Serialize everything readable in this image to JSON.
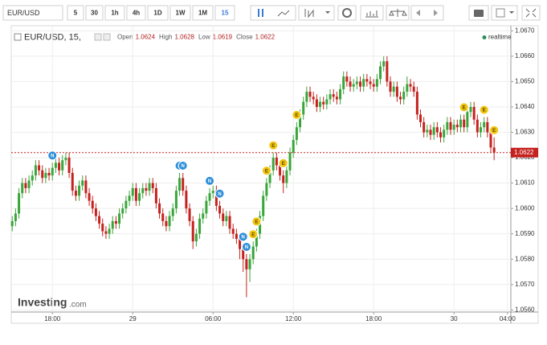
{
  "toolbar": {
    "symbol": "EUR/USD",
    "intervals": [
      "5",
      "30",
      "1h",
      "4h",
      "1D",
      "1W",
      "1M"
    ],
    "selected": "15"
  },
  "chart_data": {
    "type": "candlestick",
    "legend": {
      "title": "EUR/USD, 15,",
      "open_label": "Open",
      "open": 1.0624,
      "high_label": "High",
      "high": 1.0628,
      "low_label": "Low",
      "low": 1.0619,
      "close_label": "Close",
      "close": 1.0622,
      "status": "realtime"
    },
    "watermark": {
      "brand": "Investing",
      "suffix": ".com"
    },
    "current_price": 1.0622,
    "up_color": "#3aa53a",
    "down_color": "#c4221f",
    "grid": true,
    "ylim": [
      1.0556,
      1.0672
    ],
    "yticks": [
      {
        "value": 1.056,
        "label": "1.0560"
      },
      {
        "value": 1.057,
        "label": "1.0570"
      },
      {
        "value": 1.058,
        "label": "1.0580"
      },
      {
        "value": 1.059,
        "label": "1.0590"
      },
      {
        "value": 1.06,
        "label": "1.0600"
      },
      {
        "value": 1.061,
        "label": "1.0610"
      },
      {
        "value": 1.062,
        "label": "1.0620"
      },
      {
        "value": 1.063,
        "label": "1.0630"
      },
      {
        "value": 1.064,
        "label": "1.0640"
      },
      {
        "value": 1.065,
        "label": "1.0650"
      },
      {
        "value": 1.066,
        "label": "1.0660"
      },
      {
        "value": 1.067,
        "label": "1.0670"
      }
    ],
    "xlim": [
      -0.3,
      149
    ],
    "xticks": [
      {
        "value": 12,
        "label": "18:00"
      },
      {
        "value": 36,
        "label": "29"
      },
      {
        "value": 60,
        "label": "06:00"
      },
      {
        "value": 84,
        "label": "12:00"
      },
      {
        "value": 108,
        "label": "18:00"
      },
      {
        "value": 132,
        "label": "30"
      },
      {
        "value": 148,
        "label": "04:00"
      }
    ],
    "open": [
      1.0593,
      1.0595,
      1.0598,
      1.0606,
      1.061,
      1.0608,
      1.0611,
      1.0613,
      1.0617,
      1.0615,
      1.0612,
      1.0614,
      1.0613,
      1.0616,
      1.0618,
      1.0615,
      1.0619,
      1.062,
      1.0614,
      1.0607,
      1.0605,
      1.0609,
      1.0611,
      1.0606,
      1.0603,
      1.06,
      1.0597,
      1.0594,
      1.0591,
      1.059,
      1.0592,
      1.0595,
      1.0594,
      1.0598,
      1.06,
      1.0603,
      1.0605,
      1.0608,
      1.0603,
      1.0606,
      1.0608,
      1.0607,
      1.061,
      1.0608,
      1.0602,
      1.0598,
      1.0595,
      1.0593,
      1.0597,
      1.06,
      1.0607,
      1.0612,
      1.0607,
      1.06,
      1.0595,
      1.0587,
      1.059,
      1.0596,
      1.0598,
      1.0603,
      1.0606,
      1.0607,
      1.0601,
      1.0598,
      1.0595,
      1.0597,
      1.0592,
      1.059,
      1.0588,
      1.0584,
      1.058,
      1.0576,
      1.058,
      1.0585,
      1.059,
      1.0597,
      1.0605,
      1.061,
      1.0615,
      1.062,
      1.0617,
      1.0613,
      1.061,
      1.0615,
      1.0622,
      1.0627,
      1.0632,
      1.0637,
      1.0642,
      1.0646,
      1.0644,
      1.0643,
      1.064,
      1.0642,
      1.0641,
      1.0643,
      1.0645,
      1.0644,
      1.0643,
      1.0647,
      1.0652,
      1.065,
      1.0648,
      1.0649,
      1.065,
      1.0648,
      1.0651,
      1.065,
      1.0649,
      1.0648,
      1.0651,
      1.0656,
      1.0658,
      1.065,
      1.0646,
      1.0648,
      1.0644,
      1.0643,
      1.0646,
      1.0649,
      1.0648,
      1.0646,
      1.0637,
      1.0634,
      1.063,
      1.0631,
      1.0629,
      1.0632,
      1.063,
      1.0628,
      1.0631,
      1.0634,
      1.0631,
      1.0633,
      1.0632,
      1.0635,
      1.0632,
      1.0638,
      1.064,
      1.0635,
      1.063,
      1.0632,
      1.0634,
      1.063,
      1.0624
    ],
    "high": [
      1.0597,
      1.06,
      1.0608,
      1.0612,
      1.0612,
      1.0613,
      1.0615,
      1.0619,
      1.0619,
      1.0617,
      1.0616,
      1.0616,
      1.0618,
      1.0621,
      1.062,
      1.0621,
      1.0622,
      1.0622,
      1.0616,
      1.0609,
      1.0611,
      1.0613,
      1.0613,
      1.0608,
      1.0605,
      1.0602,
      1.0599,
      1.0596,
      1.0593,
      1.0594,
      1.0597,
      1.0597,
      1.06,
      1.0602,
      1.0605,
      1.0607,
      1.061,
      1.061,
      1.0608,
      1.061,
      1.061,
      1.0612,
      1.0612,
      1.061,
      1.0604,
      1.06,
      1.0597,
      1.0599,
      1.0602,
      1.0609,
      1.0614,
      1.0614,
      1.0609,
      1.0602,
      1.0597,
      1.0592,
      1.0598,
      1.06,
      1.0605,
      1.0608,
      1.0609,
      1.0609,
      1.0603,
      1.06,
      1.0599,
      1.0599,
      1.0594,
      1.0592,
      1.059,
      1.0586,
      1.0582,
      1.0582,
      1.0587,
      1.0592,
      1.0599,
      1.0607,
      1.0612,
      1.0617,
      1.0622,
      1.0622,
      1.0619,
      1.0615,
      1.0617,
      1.0624,
      1.0629,
      1.0634,
      1.0639,
      1.0644,
      1.0648,
      1.0648,
      1.0646,
      1.0645,
      1.0644,
      1.0644,
      1.0645,
      1.0647,
      1.0647,
      1.0646,
      1.0649,
      1.0654,
      1.0654,
      1.0652,
      1.0651,
      1.0652,
      1.0652,
      1.0653,
      1.0653,
      1.0652,
      1.0651,
      1.0653,
      1.0658,
      1.066,
      1.066,
      1.0652,
      1.065,
      1.065,
      1.0646,
      1.0648,
      1.0652,
      1.0651,
      1.065,
      1.0648,
      1.0639,
      1.0636,
      1.0633,
      1.0633,
      1.0634,
      1.0634,
      1.0632,
      1.0633,
      1.0636,
      1.0636,
      1.0635,
      1.0635,
      1.0637,
      1.0637,
      1.064,
      1.0642,
      1.0642,
      1.0637,
      1.0634,
      1.0636,
      1.0636,
      1.0632,
      1.0628
    ],
    "low": [
      1.0591,
      1.0593,
      1.0596,
      1.0604,
      1.0606,
      1.0606,
      1.0609,
      1.0611,
      1.0613,
      1.061,
      1.061,
      1.0611,
      1.0611,
      1.0614,
      1.0613,
      1.0613,
      1.0617,
      1.0612,
      1.0605,
      1.0603,
      1.0603,
      1.0607,
      1.0604,
      1.0601,
      1.0598,
      1.0595,
      1.0592,
      1.0589,
      1.0588,
      1.0588,
      1.059,
      1.0592,
      1.0592,
      1.0596,
      1.0598,
      1.0601,
      1.0603,
      1.0601,
      1.0601,
      1.0604,
      1.0605,
      1.0605,
      1.0606,
      1.06,
      1.0596,
      1.0593,
      1.0591,
      1.0591,
      1.0595,
      1.0598,
      1.0605,
      1.0605,
      1.0598,
      1.0593,
      1.0584,
      1.0585,
      1.0588,
      1.0594,
      1.0596,
      1.0601,
      1.0604,
      1.0599,
      1.0596,
      1.0593,
      1.0593,
      1.059,
      1.0588,
      1.0586,
      1.058,
      1.0575,
      1.0565,
      1.0571,
      1.0578,
      1.0583,
      1.0588,
      1.0595,
      1.0603,
      1.0608,
      1.0613,
      1.0615,
      1.0611,
      1.0606,
      1.0608,
      1.0613,
      1.062,
      1.0625,
      1.063,
      1.0635,
      1.064,
      1.0642,
      1.0641,
      1.0638,
      1.0638,
      1.0639,
      1.0639,
      1.0641,
      1.0642,
      1.0641,
      1.0641,
      1.0645,
      1.0648,
      1.0646,
      1.0646,
      1.0647,
      1.0646,
      1.0646,
      1.0648,
      1.0647,
      1.0646,
      1.0646,
      1.0649,
      1.0654,
      1.0648,
      1.0644,
      1.0644,
      1.0642,
      1.0641,
      1.0641,
      1.0644,
      1.0646,
      1.0644,
      1.0635,
      1.0632,
      1.0628,
      1.0628,
      1.0627,
      1.0627,
      1.0628,
      1.0626,
      1.0626,
      1.0629,
      1.0629,
      1.0629,
      1.063,
      1.063,
      1.063,
      1.063,
      1.0636,
      1.0633,
      1.0628,
      1.0628,
      1.063,
      1.0628,
      1.0622,
      1.0619
    ],
    "close": [
      1.0595,
      1.0598,
      1.0606,
      1.061,
      1.0608,
      1.0611,
      1.0613,
      1.0617,
      1.0615,
      1.0612,
      1.0614,
      1.0613,
      1.0616,
      1.0618,
      1.0615,
      1.0619,
      1.062,
      1.0614,
      1.0607,
      1.0605,
      1.0609,
      1.0611,
      1.0606,
      1.0603,
      1.06,
      1.0597,
      1.0594,
      1.0591,
      1.059,
      1.0592,
      1.0595,
      1.0594,
      1.0598,
      1.06,
      1.0603,
      1.0605,
      1.0608,
      1.0603,
      1.0606,
      1.0608,
      1.0607,
      1.061,
      1.0608,
      1.0602,
      1.0598,
      1.0595,
      1.0593,
      1.0597,
      1.06,
      1.0607,
      1.0612,
      1.0607,
      1.06,
      1.0595,
      1.0587,
      1.059,
      1.0596,
      1.0598,
      1.0603,
      1.0606,
      1.0607,
      1.0601,
      1.0598,
      1.0595,
      1.0597,
      1.0592,
      1.059,
      1.0588,
      1.0584,
      1.058,
      1.0576,
      1.058,
      1.0585,
      1.059,
      1.0597,
      1.0605,
      1.061,
      1.0615,
      1.062,
      1.0617,
      1.0613,
      1.061,
      1.0615,
      1.0622,
      1.0627,
      1.0632,
      1.0637,
      1.0642,
      1.0646,
      1.0644,
      1.0643,
      1.064,
      1.0642,
      1.0641,
      1.0643,
      1.0645,
      1.0644,
      1.0643,
      1.0647,
      1.0652,
      1.065,
      1.0648,
      1.0649,
      1.065,
      1.0648,
      1.0651,
      1.065,
      1.0649,
      1.0648,
      1.0651,
      1.0656,
      1.0658,
      1.065,
      1.0646,
      1.0648,
      1.0644,
      1.0643,
      1.0646,
      1.0649,
      1.0648,
      1.0646,
      1.0637,
      1.0634,
      1.063,
      1.0631,
      1.0629,
      1.0632,
      1.063,
      1.0628,
      1.0631,
      1.0634,
      1.0631,
      1.0633,
      1.0632,
      1.0635,
      1.0632,
      1.0638,
      1.064,
      1.0635,
      1.063,
      1.0632,
      1.0634,
      1.063,
      1.0624,
      1.0622
    ],
    "events": [
      {
        "label": "N",
        "candle": 12
      },
      {
        "label": "N",
        "candle": 50
      },
      {
        "label": "N",
        "candle": 51
      },
      {
        "label": "N",
        "candle": 59
      },
      {
        "label": "N",
        "candle": 62
      },
      {
        "label": "N",
        "candle": 69
      },
      {
        "label": "N",
        "candle": 70
      },
      {
        "label": "E",
        "candle": 72
      },
      {
        "label": "E",
        "candle": 73
      },
      {
        "label": "E",
        "candle": 76
      },
      {
        "label": "E",
        "candle": 78
      },
      {
        "label": "E",
        "candle": 81
      },
      {
        "label": "E",
        "candle": 85
      },
      {
        "label": "E",
        "candle": 135
      },
      {
        "label": "E",
        "candle": 141
      },
      {
        "label": "E",
        "candle": 144
      }
    ]
  }
}
